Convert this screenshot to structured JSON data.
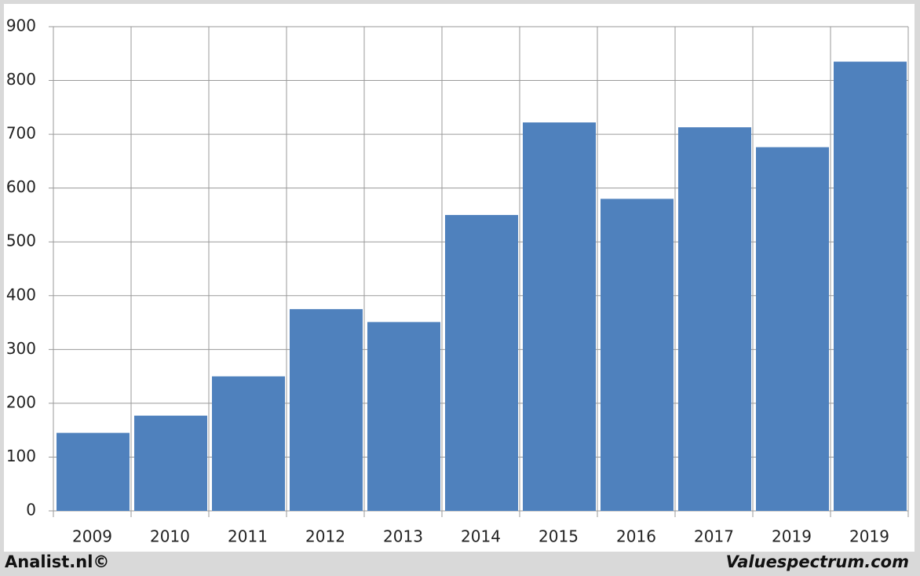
{
  "chart_data": {
    "type": "bar",
    "categories": [
      "2009",
      "2010",
      "2011",
      "2012",
      "2013",
      "2014",
      "2015",
      "2016",
      "2017",
      "2019",
      "2019"
    ],
    "values": [
      145,
      177,
      250,
      375,
      351,
      550,
      722,
      580,
      713,
      676,
      835
    ],
    "color": "#4f81bd",
    "ylim": [
      0,
      900
    ],
    "yticks": [
      0,
      100,
      200,
      300,
      400,
      500,
      600,
      700,
      800,
      900
    ],
    "grid": true
  },
  "footer": {
    "left": "Analist.nl©",
    "right": "Valuespectrum.com"
  }
}
